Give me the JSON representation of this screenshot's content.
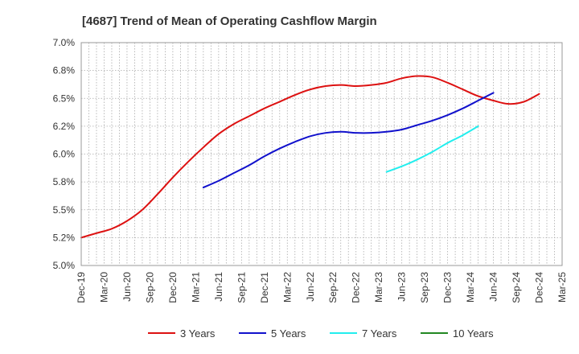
{
  "chart_data": {
    "type": "line",
    "title": "[4687]  Trend of Mean of Operating Cashflow Margin",
    "xlabel": "",
    "ylabel": "",
    "x_ticks": [
      "Dec-19",
      "Mar-20",
      "Jun-20",
      "Sep-20",
      "Dec-20",
      "Mar-21",
      "Jun-21",
      "Sep-21",
      "Dec-21",
      "Mar-22",
      "Jun-22",
      "Sep-22",
      "Dec-22",
      "Mar-23",
      "Jun-23",
      "Sep-23",
      "Dec-23",
      "Mar-24",
      "Jun-24",
      "Sep-24",
      "Dec-24",
      "Mar-25"
    ],
    "y_ticks": [
      "5.0%",
      "5.2%",
      "5.5%",
      "5.8%",
      "6.0%",
      "6.2%",
      "6.5%",
      "6.8%",
      "7.0%"
    ],
    "ylim": [
      5.0,
      7.0
    ],
    "grid": "dotted",
    "legend_position": "bottom",
    "series": [
      {
        "name": "3 Years",
        "color": "#dd1111",
        "start_index": 0,
        "values": [
          5.25,
          5.29,
          5.33,
          5.4,
          5.5,
          5.64,
          5.79,
          5.93,
          6.06,
          6.18,
          6.27,
          6.34,
          6.41,
          6.47,
          6.53,
          6.58,
          6.61,
          6.62,
          6.61,
          6.62,
          6.64,
          6.68,
          6.7,
          6.69,
          6.64,
          6.58,
          6.52,
          6.48,
          6.45,
          6.47,
          6.54
        ]
      },
      {
        "name": "5 Years",
        "color": "#1111cc",
        "start_index": 8,
        "values": [
          5.7,
          5.76,
          5.83,
          5.9,
          5.98,
          6.05,
          6.11,
          6.16,
          6.19,
          6.2,
          6.19,
          6.19,
          6.2,
          6.22,
          6.26,
          6.3,
          6.35,
          6.41,
          6.48,
          6.55
        ]
      },
      {
        "name": "7 Years",
        "color": "#22eeee",
        "start_index": 20,
        "values": [
          5.84,
          5.89,
          5.95,
          6.02,
          6.1,
          6.17,
          6.25
        ]
      },
      {
        "name": "10 Years",
        "color": "#228822",
        "start_index": 0,
        "values": []
      }
    ]
  }
}
